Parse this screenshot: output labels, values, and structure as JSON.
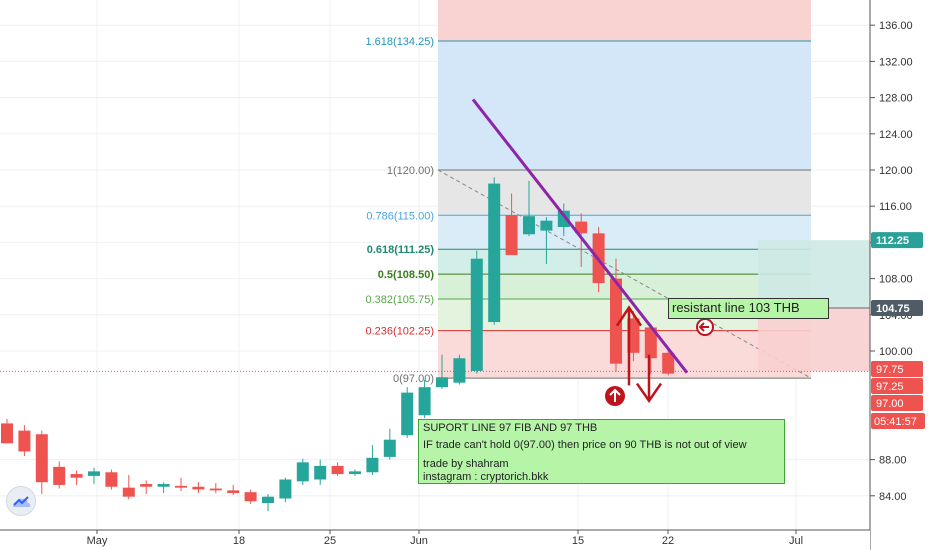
{
  "chart_data": {
    "type": "candlestick",
    "price_axis": {
      "ticks": [
        "136.00",
        "132.00",
        "128.00",
        "124.00",
        "120.00",
        "116.00",
        "112.00",
        "108.00",
        "104.00",
        "100.00",
        "88.00",
        "84.00"
      ],
      "ylim": [
        81,
        139
      ]
    },
    "time_axis": {
      "ticks": [
        "May",
        "18",
        "25",
        "Jun",
        "15",
        "22",
        "Jul"
      ]
    },
    "candles": [
      {
        "o": 92.0,
        "h": 92.5,
        "l": 89.8,
        "c": 89.8
      },
      {
        "o": 91.2,
        "h": 91.8,
        "l": 88.4,
        "c": 88.9
      },
      {
        "o": 90.8,
        "h": 91.2,
        "l": 84.2,
        "c": 85.5
      },
      {
        "o": 87.2,
        "h": 87.8,
        "l": 84.8,
        "c": 85.2
      },
      {
        "o": 86.4,
        "h": 86.8,
        "l": 85.2,
        "c": 86.0
      },
      {
        "o": 86.2,
        "h": 87.1,
        "l": 85.3,
        "c": 86.7
      },
      {
        "o": 86.6,
        "h": 86.9,
        "l": 84.7,
        "c": 85.0
      },
      {
        "o": 84.9,
        "h": 86.3,
        "l": 83.6,
        "c": 83.9
      },
      {
        "o": 85.3,
        "h": 85.7,
        "l": 84.2,
        "c": 85.0
      },
      {
        "o": 85.0,
        "h": 85.5,
        "l": 84.3,
        "c": 85.3
      },
      {
        "o": 85.1,
        "h": 86.0,
        "l": 84.5,
        "c": 84.9
      },
      {
        "o": 85.0,
        "h": 85.5,
        "l": 84.3,
        "c": 84.7
      },
      {
        "o": 84.8,
        "h": 85.4,
        "l": 84.3,
        "c": 84.6
      },
      {
        "o": 84.6,
        "h": 85.2,
        "l": 84.1,
        "c": 84.3
      },
      {
        "o": 84.4,
        "h": 84.7,
        "l": 83.1,
        "c": 83.4
      },
      {
        "o": 83.2,
        "h": 84.2,
        "l": 82.3,
        "c": 83.9
      },
      {
        "o": 83.7,
        "h": 86.0,
        "l": 83.3,
        "c": 85.8
      },
      {
        "o": 85.6,
        "h": 88.1,
        "l": 85.2,
        "c": 87.7
      },
      {
        "o": 85.8,
        "h": 88.0,
        "l": 85.2,
        "c": 87.3
      },
      {
        "o": 87.3,
        "h": 87.7,
        "l": 86.2,
        "c": 86.4
      },
      {
        "o": 86.4,
        "h": 86.9,
        "l": 86.2,
        "c": 86.7
      },
      {
        "o": 86.6,
        "h": 89.6,
        "l": 86.3,
        "c": 88.2
      },
      {
        "o": 88.3,
        "h": 91.4,
        "l": 88.0,
        "c": 90.2
      },
      {
        "o": 90.7,
        "h": 96.0,
        "l": 90.4,
        "c": 95.4
      },
      {
        "o": 92.9,
        "h": 96.8,
        "l": 92.6,
        "c": 96.0
      },
      {
        "o": 96.0,
        "h": 99.6,
        "l": 95.8,
        "c": 97.1
      },
      {
        "o": 96.5,
        "h": 99.6,
        "l": 96.3,
        "c": 99.2
      },
      {
        "o": 97.8,
        "h": 111.1,
        "l": 97.5,
        "c": 110.2
      },
      {
        "o": 103.2,
        "h": 119.2,
        "l": 102.9,
        "c": 118.5
      },
      {
        "o": 115.0,
        "h": 117.4,
        "l": 110.7,
        "c": 110.6
      },
      {
        "o": 112.9,
        "h": 118.8,
        "l": 112.7,
        "c": 114.9
      },
      {
        "o": 113.3,
        "h": 114.8,
        "l": 109.6,
        "c": 114.4
      },
      {
        "o": 113.7,
        "h": 116.3,
        "l": 112.7,
        "c": 115.5
      },
      {
        "o": 114.3,
        "h": 115.2,
        "l": 109.3,
        "c": 113.0
      },
      {
        "o": 113.0,
        "h": 113.7,
        "l": 106.5,
        "c": 107.5
      },
      {
        "o": 108.0,
        "h": 110.2,
        "l": 97.7,
        "c": 98.6
      },
      {
        "o": 103.6,
        "h": 104.4,
        "l": 98.9,
        "c": 99.8
      },
      {
        "o": 102.6,
        "h": 103.0,
        "l": 97.5,
        "c": 99.2
      },
      {
        "o": 99.8,
        "h": 100.3,
        "l": 97.3,
        "c": 97.5
      }
    ],
    "fibonacci": {
      "levels": [
        {
          "ratio": "1.618",
          "value": 134.25,
          "label": "1.618(134.25)",
          "color": "#2196b8"
        },
        {
          "ratio": "1",
          "value": 120.0,
          "label": "1(120.00)",
          "color": "#707070"
        },
        {
          "ratio": "0.786",
          "value": 115.0,
          "label": "0.786(115.00)",
          "color": "#4aa3e0"
        },
        {
          "ratio": "0.618",
          "value": 111.25,
          "label": "0.618(111.25)",
          "color": "#1f8a70"
        },
        {
          "ratio": "0.5",
          "value": 108.5,
          "label": "0.5(108.50)",
          "color": "#3a7d1e"
        },
        {
          "ratio": "0.382",
          "value": 105.75,
          "label": "0.382(105.75)",
          "color": "#55a84a"
        },
        {
          "ratio": "0.236",
          "value": 102.25,
          "label": "0.236(102.25)",
          "color": "#d62f2f"
        },
        {
          "ratio": "0",
          "value": 97.0,
          "label": "0(97.00)",
          "color": "#707070"
        }
      ],
      "top_value": 139.0
    },
    "resistance_line": {
      "label": "resistant line 103 THB",
      "start_value": 127.8,
      "end_value": 97.6
    },
    "price_badges": [
      {
        "value": 112.25,
        "label": "112.25",
        "bg": "#2aa198",
        "fg": "#ffffff",
        "bold": true
      },
      {
        "value": 104.75,
        "label": "104.75",
        "bg": "#4f5b66",
        "fg": "#ffffff",
        "bold": true
      },
      {
        "value": 97.75,
        "label": "97.75",
        "bg": "#ef5350",
        "fg": "#ffffff",
        "bold": false
      },
      {
        "value": 97.25,
        "label": "97.25",
        "bg": "#ef5350",
        "fg": "#ffffff",
        "bold": false
      },
      {
        "value": 97.0,
        "label": "97.00",
        "bg": "#ef5350",
        "fg": "#ffffff",
        "bold": false
      }
    ],
    "countdown": {
      "label": "05:41:57",
      "bg": "#ef5350",
      "fg": "#ffffff"
    },
    "current_price": 97.75
  },
  "annotations": {
    "support_note": {
      "title": "SUPORT LINE 97 FIB AND 97 THB",
      "line1": "IF trade can't hold 0(97.00) then price on 90 THB is not out of view",
      "line2": "trade by shahram",
      "line3": "instagram :  cryptorich.bkk"
    },
    "resistance_note": "resistant line 103 THB"
  },
  "colors": {
    "up": "#26a69a",
    "down": "#ef5350",
    "trendline": "#8e24aa",
    "arrows": "#c0141d"
  },
  "icons": {
    "logo": "tradingview-cloud-icon"
  }
}
